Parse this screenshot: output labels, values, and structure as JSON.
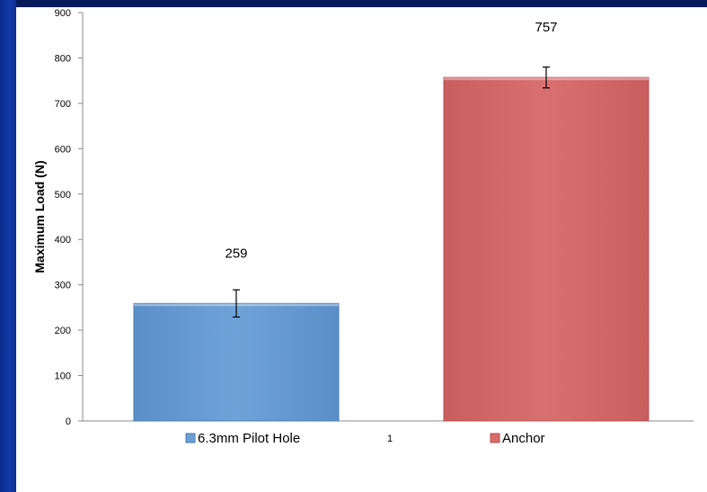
{
  "chart_data": {
    "type": "bar",
    "categories": [
      "1"
    ],
    "series": [
      {
        "name": "6.3mm Pilot Hole",
        "values": [
          259
        ],
        "error": [
          30
        ],
        "color": "#6a9fd4"
      },
      {
        "name": "Anchor",
        "values": [
          757
        ],
        "error": [
          23
        ],
        "color": "#d96b6b"
      }
    ],
    "data_labels": [
      "259",
      "757"
    ],
    "title": "",
    "xlabel": "",
    "ylabel": "Maximum Load (N)",
    "ylim": [
      0,
      900
    ],
    "yticks": [
      0,
      100,
      200,
      300,
      400,
      500,
      600,
      700,
      800,
      900
    ],
    "grid": false,
    "legend": "bottom",
    "background_color": "#0a1f6e"
  }
}
